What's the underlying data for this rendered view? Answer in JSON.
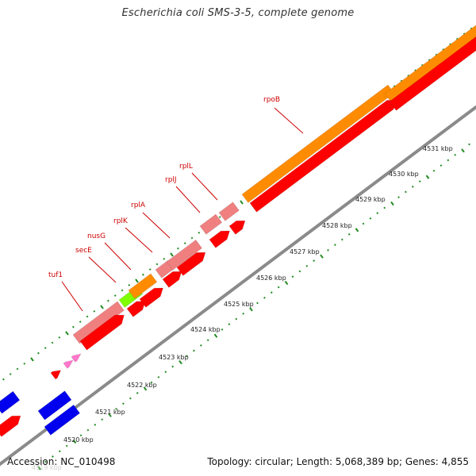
{
  "title": "Escherichia coli SMS-3-5, complete genome",
  "footer": {
    "accession": "Accession: NC_010498",
    "stats": "Topology: circular; Length: 5,068,389 bp; Genes: 4,855"
  },
  "colors": {
    "gene_red": "#ff0000",
    "gene_pink": "#f08080",
    "gene_orange": "#ff8c00",
    "gene_green": "#7fff00",
    "gene_blue": "#0000ee",
    "gene_magenta": "#ff77cc",
    "backbone": "#8a8a8a",
    "tick_green": "#228b22",
    "label_red": "#cc0000"
  },
  "scale": {
    "labels": [
      "4519 kbp",
      "4520 kbp",
      "4521 kbp",
      "4522 kbp",
      "4523 kbp",
      "4524 kbp",
      "4525 kbp",
      "4526 kbp",
      "4527 kbp",
      "4528 kbp",
      "4529 kbp",
      "4530 kbp",
      "4531 kbp"
    ]
  },
  "gene_labels": [
    {
      "name": "tuf1"
    },
    {
      "name": "secE"
    },
    {
      "name": "nusG"
    },
    {
      "name": "rplK"
    },
    {
      "name": "rplA"
    },
    {
      "name": "rplJ"
    },
    {
      "name": "rplL"
    },
    {
      "name": "rpoB"
    }
  ]
}
